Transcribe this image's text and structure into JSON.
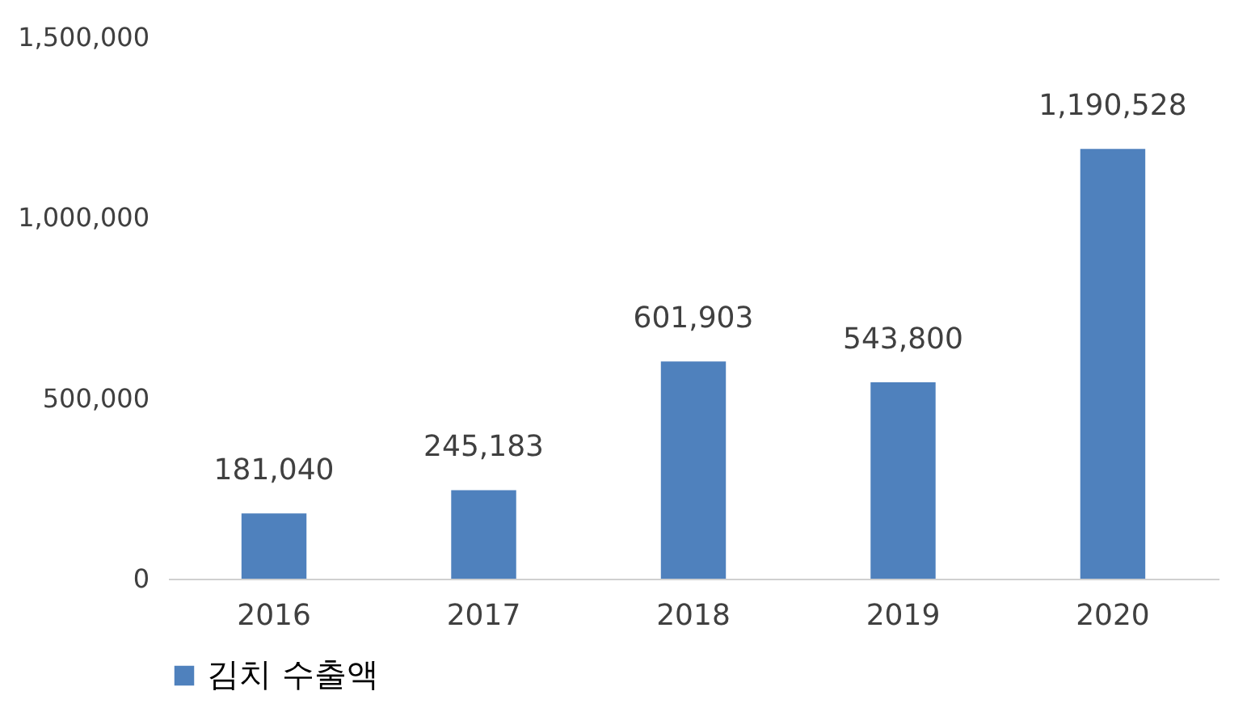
{
  "chart_data": {
    "type": "bar",
    "categories": [
      "2016",
      "2017",
      "2018",
      "2019",
      "2020"
    ],
    "series": [
      {
        "name": "김치 수출액",
        "color": "#4f81bd",
        "values": [
          181040,
          245183,
          601903,
          543800,
          1190528
        ],
        "value_labels": [
          "181,040",
          "245,183",
          "601,903",
          "543,800",
          "1,190,528"
        ]
      }
    ],
    "ylim": [
      0,
      1500000
    ],
    "yticks": [
      0,
      {
        "value": 500000,
        "label": "500,000"
      },
      {
        "value": 1000000,
        "label": "1,000,000"
      },
      {
        "value": 1500000,
        "label": "1,500,000"
      }
    ],
    "grid": false,
    "legend": "bottom"
  }
}
